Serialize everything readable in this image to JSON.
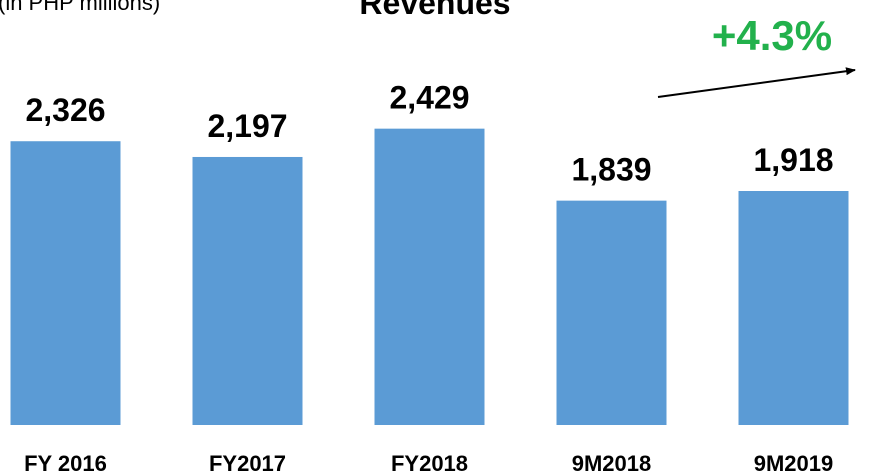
{
  "chart_data": {
    "type": "bar",
    "title": "Revenues",
    "subtitle": "(in PHP millions)",
    "annotation": "+4.3%",
    "annotation_color": "#22b14c",
    "categories": [
      "FY 2016",
      "FY2017",
      "FY2018",
      "9M2018",
      "9M2019"
    ],
    "values": [
      2326,
      2197,
      2429,
      1839,
      1918
    ],
    "value_labels": [
      "2,326",
      "2,197",
      "2,429",
      "1,839",
      "1,918"
    ],
    "color": "#5b9bd5"
  }
}
